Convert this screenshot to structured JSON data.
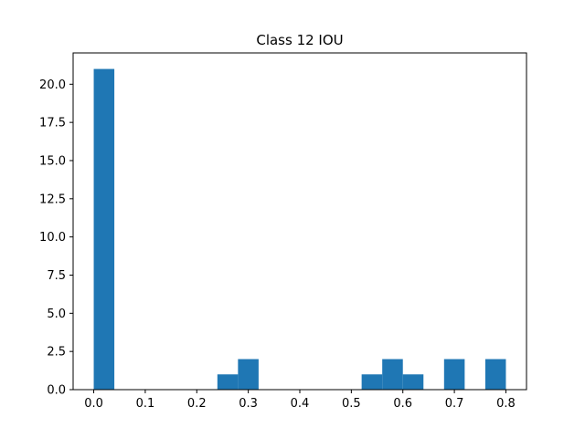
{
  "chart_data": {
    "type": "bar",
    "title": "Class 12 IOU",
    "xlabel": "",
    "ylabel": "",
    "xlim": [
      -0.04,
      0.84
    ],
    "ylim": [
      0,
      22.05
    ],
    "bin_width": 0.04,
    "bins": [
      {
        "x0": 0.0,
        "x1": 0.04,
        "value": 21
      },
      {
        "x0": 0.24,
        "x1": 0.28,
        "value": 1
      },
      {
        "x0": 0.28,
        "x1": 0.32,
        "value": 2
      },
      {
        "x0": 0.52,
        "x1": 0.56,
        "value": 1
      },
      {
        "x0": 0.56,
        "x1": 0.6,
        "value": 2
      },
      {
        "x0": 0.6,
        "x1": 0.64,
        "value": 1
      },
      {
        "x0": 0.68,
        "x1": 0.72,
        "value": 2
      },
      {
        "x0": 0.76,
        "x1": 0.8,
        "value": 2
      }
    ],
    "x_ticks": [
      0.0,
      0.1,
      0.2,
      0.3,
      0.4,
      0.5,
      0.6,
      0.7,
      0.8
    ],
    "x_tick_labels": [
      "0.0",
      "0.1",
      "0.2",
      "0.3",
      "0.4",
      "0.5",
      "0.6",
      "0.7",
      "0.8"
    ],
    "y_ticks": [
      0,
      2.5,
      5,
      7.5,
      10,
      12.5,
      15,
      17.5,
      20
    ],
    "y_tick_labels": [
      "0.0",
      "2.5",
      "5.0",
      "7.5",
      "10.0",
      "12.5",
      "15.0",
      "17.5",
      "20.0"
    ],
    "bar_color": "#1f77b4",
    "grid": false
  }
}
